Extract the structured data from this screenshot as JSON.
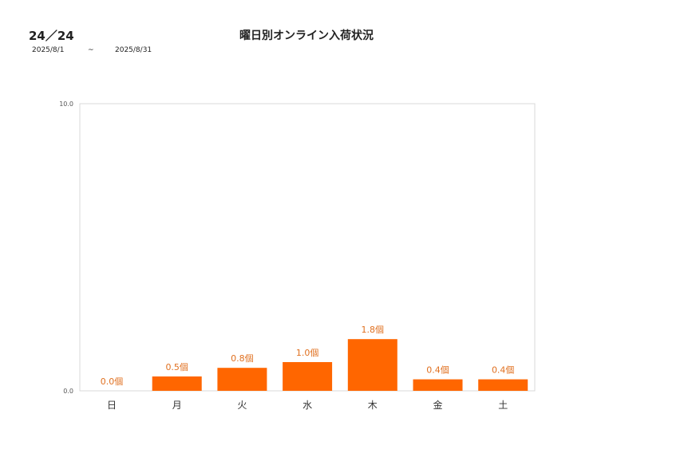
{
  "header": {
    "id_label": "24／24",
    "title": "曜日別オンライン入荷状況",
    "date_from": "2025/8/1",
    "date_sep": "~",
    "date_to": "2025/8/31"
  },
  "chart_data": {
    "type": "bar",
    "categories": [
      "日",
      "月",
      "火",
      "水",
      "木",
      "金",
      "土"
    ],
    "values": [
      0.0,
      0.5,
      0.8,
      1.0,
      1.8,
      0.4,
      0.4
    ],
    "data_labels": [
      "0.0個",
      "0.5個",
      "0.8個",
      "1.0個",
      "1.8個",
      "0.4個",
      "0.4個"
    ],
    "ylim": [
      0,
      10
    ],
    "y_ticks": [
      "0.0",
      "10.0"
    ],
    "bar_color": "#ff6600",
    "label_color": "#e07020",
    "grid": false
  }
}
